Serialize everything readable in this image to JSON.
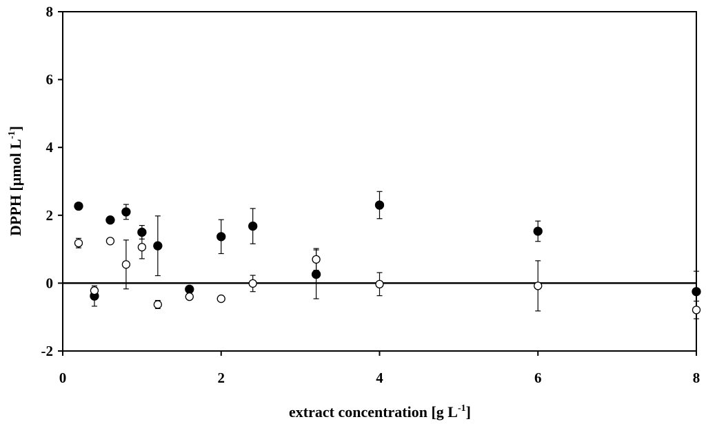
{
  "chart_data": {
    "type": "scatter",
    "xlabel": "extract concentration [g L",
    "xlabel_sup": "-1",
    "xlabel_end": "]",
    "ylabel": "DPPH [µmol L",
    "ylabel_sup": "-1",
    "ylabel_end": "]",
    "xlim": [
      0,
      8
    ],
    "ylim": [
      -2,
      8
    ],
    "x_ticks": [
      0,
      2,
      4,
      6,
      8
    ],
    "x_tick_labels": [
      "0",
      "2",
      "4",
      "6",
      "8"
    ],
    "y_ticks": [
      -2,
      0,
      2,
      4,
      6,
      8
    ],
    "y_tick_labels": [
      "-2",
      "0",
      "2",
      "4",
      "6",
      "8"
    ],
    "grid": false,
    "zero_line": true,
    "series": [
      {
        "marker": "filled-circle",
        "color": "#000000",
        "points": [
          {
            "x": 0.2,
            "y": 2.27,
            "err": 0.06
          },
          {
            "x": 0.4,
            "y": -0.38,
            "err": 0.3
          },
          {
            "x": 0.6,
            "y": 1.86,
            "err": 0.06
          },
          {
            "x": 0.8,
            "y": 2.1,
            "err": 0.22
          },
          {
            "x": 1.0,
            "y": 1.5,
            "err": 0.2
          },
          {
            "x": 1.2,
            "y": 1.1,
            "err": 0.88
          },
          {
            "x": 1.6,
            "y": -0.18,
            "err": 0.06
          },
          {
            "x": 2.0,
            "y": 1.37,
            "err": 0.5
          },
          {
            "x": 2.4,
            "y": 1.68,
            "err": 0.52
          },
          {
            "x": 3.2,
            "y": 0.26,
            "err": 0.72
          },
          {
            "x": 4.0,
            "y": 2.3,
            "err": 0.4
          },
          {
            "x": 6.0,
            "y": 1.53,
            "err": 0.3
          },
          {
            "x": 8.0,
            "y": -0.25,
            "err": 0.6
          }
        ]
      },
      {
        "marker": "open-circle",
        "color": "#000000",
        "points": [
          {
            "x": 0.2,
            "y": 1.18,
            "err": 0.14
          },
          {
            "x": 0.4,
            "y": -0.22,
            "err": 0.1
          },
          {
            "x": 0.6,
            "y": 1.24,
            "err": 0.06
          },
          {
            "x": 0.8,
            "y": 0.55,
            "err": 0.72
          },
          {
            "x": 1.0,
            "y": 1.06,
            "err": 0.34
          },
          {
            "x": 1.2,
            "y": -0.63,
            "err": 0.12
          },
          {
            "x": 1.6,
            "y": -0.4,
            "err": 0.06
          },
          {
            "x": 2.0,
            "y": -0.46,
            "err": 0.06
          },
          {
            "x": 2.4,
            "y": -0.01,
            "err": 0.24
          },
          {
            "x": 3.2,
            "y": 0.7,
            "err": 0.32
          },
          {
            "x": 4.0,
            "y": -0.03,
            "err": 0.34
          },
          {
            "x": 6.0,
            "y": -0.08,
            "err": 0.74
          },
          {
            "x": 8.0,
            "y": -0.79,
            "err": 0.26
          }
        ]
      }
    ]
  }
}
